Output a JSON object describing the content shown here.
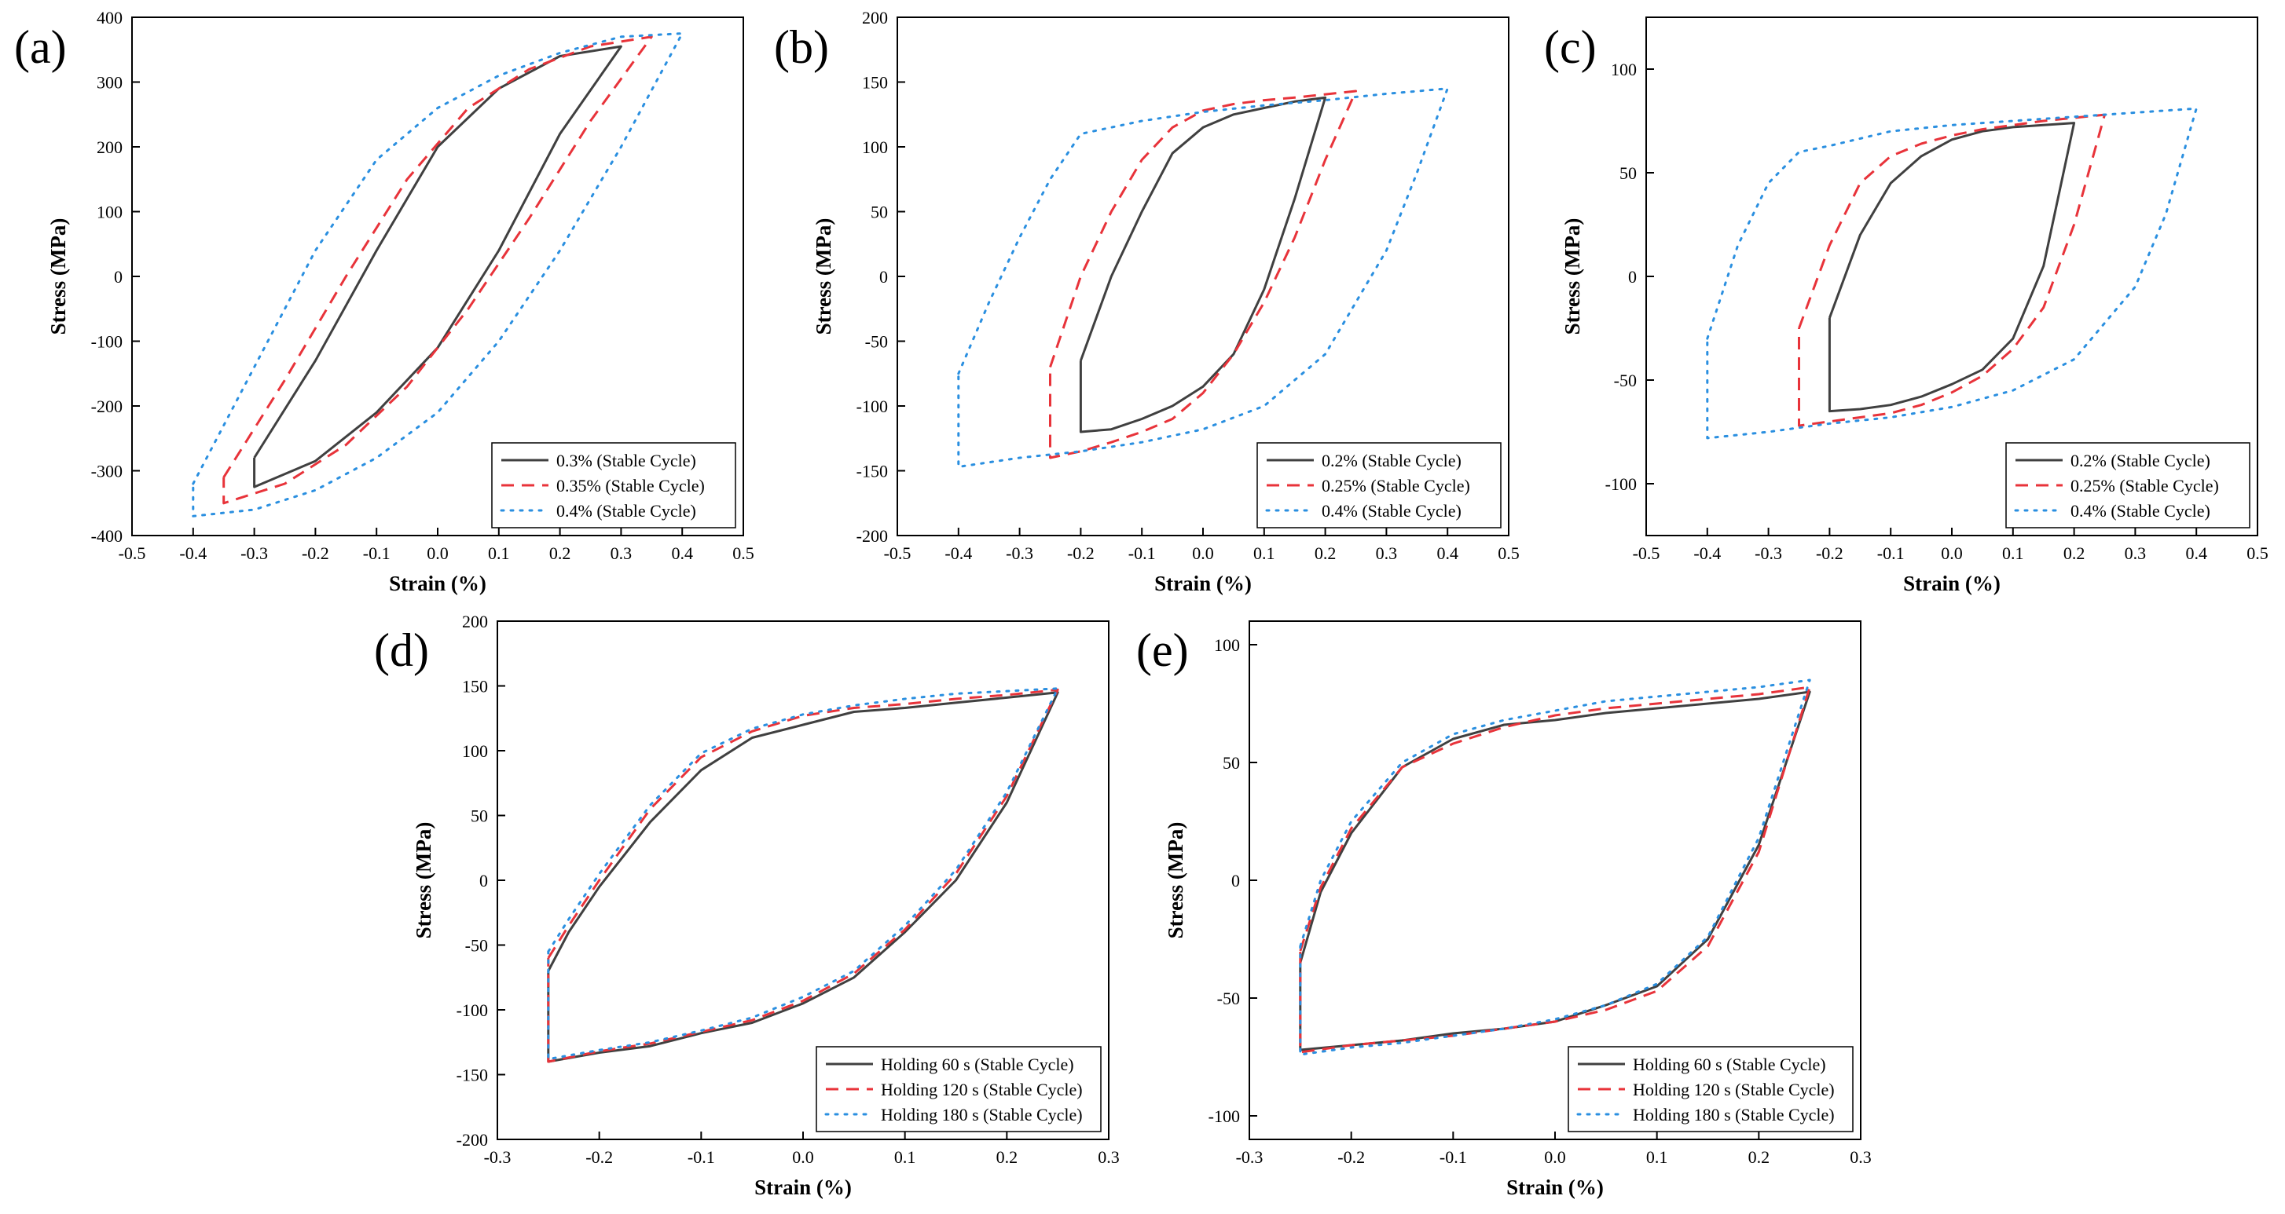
{
  "chart_data": [
    {
      "panel": "(a)",
      "type": "line",
      "xlabel": "Strain (%)",
      "ylabel": "Stress (MPa)",
      "xlim": [
        -0.5,
        0.5
      ],
      "ylim": [
        -400,
        400
      ],
      "xticks": [
        -0.5,
        -0.4,
        -0.3,
        -0.2,
        -0.1,
        0.0,
        0.1,
        0.2,
        0.3,
        0.4,
        0.5
      ],
      "yticks": [
        -400,
        -300,
        -200,
        -100,
        0,
        100,
        200,
        300,
        400
      ],
      "xtick_labels": [
        "-0.5",
        "-0.4",
        "-0.3",
        "-0.2",
        "-0.1",
        "0.0",
        "0.1",
        "0.2",
        "0.3",
        "0.4",
        "0.5"
      ],
      "ytick_labels": [
        "-400",
        "-300",
        "-200",
        "-100",
        "0",
        "100",
        "200",
        "300",
        "400"
      ],
      "legend_position": "bottom-right",
      "series": [
        {
          "name": "0.3% (Stable Cycle)",
          "color": "#404040",
          "style": "solid",
          "x": [
            -0.3,
            -0.2,
            -0.1,
            0.0,
            0.1,
            0.2,
            0.3,
            0.3,
            0.2,
            0.1,
            0.0,
            -0.1,
            -0.2,
            -0.3,
            -0.3
          ],
          "y": [
            -280,
            -130,
            40,
            200,
            290,
            340,
            355,
            355,
            220,
            40,
            -110,
            -210,
            -285,
            -325,
            -280
          ]
        },
        {
          "name": "0.35% (Stable Cycle)",
          "color": "#e8333a",
          "style": "dashed",
          "x": [
            -0.35,
            -0.25,
            -0.15,
            -0.05,
            0.05,
            0.15,
            0.25,
            0.35,
            0.35,
            0.25,
            0.15,
            0.05,
            -0.05,
            -0.15,
            -0.25,
            -0.35,
            -0.35
          ],
          "y": [
            -310,
            -160,
            0,
            150,
            260,
            320,
            355,
            370,
            370,
            240,
            90,
            -50,
            -170,
            -260,
            -320,
            -350,
            -310
          ]
        },
        {
          "name": "0.4% (Stable Cycle)",
          "color": "#2a8fe0",
          "style": "dotted",
          "x": [
            -0.4,
            -0.3,
            -0.2,
            -0.1,
            0.0,
            0.1,
            0.2,
            0.3,
            0.4,
            0.4,
            0.3,
            0.2,
            0.1,
            0.0,
            -0.1,
            -0.2,
            -0.3,
            -0.4,
            -0.4
          ],
          "y": [
            -320,
            -140,
            40,
            180,
            260,
            310,
            345,
            370,
            375,
            375,
            200,
            40,
            -100,
            -210,
            -280,
            -330,
            -360,
            -370,
            -320
          ]
        }
      ]
    },
    {
      "panel": "(b)",
      "type": "line",
      "xlabel": "Strain (%)",
      "ylabel": "Stress (MPa)",
      "xlim": [
        -0.5,
        0.5
      ],
      "ylim": [
        -200,
        200
      ],
      "xticks": [
        -0.5,
        -0.4,
        -0.3,
        -0.2,
        -0.1,
        0.0,
        0.1,
        0.2,
        0.3,
        0.4,
        0.5
      ],
      "yticks": [
        -200,
        -150,
        -100,
        -50,
        0,
        50,
        100,
        150,
        200
      ],
      "xtick_labels": [
        "-0.5",
        "-0.4",
        "-0.3",
        "-0.2",
        "-0.1",
        "0.0",
        "0.1",
        "0.2",
        "0.3",
        "0.4",
        "0.5"
      ],
      "ytick_labels": [
        "-200",
        "-150",
        "-100",
        "-50",
        "0",
        "50",
        "100",
        "150",
        "200"
      ],
      "legend_position": "bottom-right",
      "series": [
        {
          "name": "0.2% (Stable Cycle)",
          "color": "#404040",
          "style": "solid",
          "x": [
            -0.2,
            -0.15,
            -0.1,
            -0.05,
            0.0,
            0.05,
            0.1,
            0.15,
            0.2,
            0.2,
            0.15,
            0.1,
            0.05,
            0.0,
            -0.05,
            -0.1,
            -0.15,
            -0.2,
            -0.2
          ],
          "y": [
            -65,
            0,
            50,
            95,
            115,
            125,
            130,
            135,
            138,
            138,
            60,
            -10,
            -60,
            -85,
            -100,
            -110,
            -118,
            -120,
            -65
          ]
        },
        {
          "name": "0.25% (Stable Cycle)",
          "color": "#e8333a",
          "style": "dashed",
          "x": [
            -0.25,
            -0.2,
            -0.15,
            -0.1,
            -0.05,
            0.0,
            0.05,
            0.1,
            0.15,
            0.25,
            0.25,
            0.2,
            0.15,
            0.1,
            0.05,
            0.0,
            -0.05,
            -0.1,
            -0.15,
            -0.2,
            -0.25,
            -0.25
          ],
          "y": [
            -70,
            0,
            50,
            90,
            115,
            128,
            133,
            136,
            138,
            143,
            143,
            90,
            30,
            -20,
            -60,
            -90,
            -110,
            -120,
            -128,
            -135,
            -140,
            -70
          ]
        },
        {
          "name": "0.4% (Stable Cycle)",
          "color": "#2a8fe0",
          "style": "dotted",
          "x": [
            -0.4,
            -0.35,
            -0.3,
            -0.25,
            -0.2,
            -0.1,
            0.0,
            0.1,
            0.2,
            0.3,
            0.4,
            0.4,
            0.35,
            0.3,
            0.2,
            0.1,
            0.0,
            -0.1,
            -0.2,
            -0.3,
            -0.4,
            -0.4
          ],
          "y": [
            -75,
            -20,
            30,
            75,
            110,
            120,
            127,
            132,
            136,
            141,
            145,
            145,
            80,
            20,
            -60,
            -100,
            -118,
            -128,
            -135,
            -140,
            -147,
            -75
          ]
        }
      ]
    },
    {
      "panel": "(c)",
      "type": "line",
      "xlabel": "Strain (%)",
      "ylabel": "Stress (MPa)",
      "xlim": [
        -0.5,
        0.5
      ],
      "ylim": [
        -125,
        125
      ],
      "xticks": [
        -0.5,
        -0.4,
        -0.3,
        -0.2,
        -0.1,
        0.0,
        0.1,
        0.2,
        0.3,
        0.4,
        0.5
      ],
      "yticks": [
        -100,
        -50,
        0,
        50,
        100
      ],
      "xtick_labels": [
        "-0.5",
        "-0.4",
        "-0.3",
        "-0.2",
        "-0.1",
        "0.0",
        "0.1",
        "0.2",
        "0.3",
        "0.4",
        "0.5"
      ],
      "ytick_labels": [
        "-100",
        "-50",
        "0",
        "50",
        "100"
      ],
      "legend_position": "bottom-right",
      "series": [
        {
          "name": "0.2% (Stable Cycle)",
          "color": "#404040",
          "style": "solid",
          "x": [
            -0.2,
            -0.15,
            -0.1,
            -0.05,
            0.0,
            0.05,
            0.1,
            0.15,
            0.2,
            0.2,
            0.15,
            0.1,
            0.05,
            0.0,
            -0.05,
            -0.1,
            -0.15,
            -0.2,
            -0.2
          ],
          "y": [
            -20,
            20,
            45,
            58,
            66,
            70,
            72,
            73,
            74,
            74,
            5,
            -30,
            -45,
            -52,
            -58,
            -62,
            -64,
            -65,
            -20
          ]
        },
        {
          "name": "0.25% (Stable Cycle)",
          "color": "#e8333a",
          "style": "dashed",
          "x": [
            -0.25,
            -0.2,
            -0.15,
            -0.1,
            -0.05,
            0.0,
            0.05,
            0.1,
            0.15,
            0.25,
            0.25,
            0.2,
            0.15,
            0.1,
            0.05,
            0.0,
            -0.05,
            -0.1,
            -0.15,
            -0.2,
            -0.25,
            -0.25
          ],
          "y": [
            -25,
            15,
            45,
            58,
            64,
            68,
            71,
            73,
            75,
            78,
            78,
            25,
            -15,
            -35,
            -48,
            -56,
            -62,
            -66,
            -68,
            -70,
            -72,
            -25
          ]
        },
        {
          "name": "0.4% (Stable Cycle)",
          "color": "#2a8fe0",
          "style": "dotted",
          "x": [
            -0.4,
            -0.35,
            -0.3,
            -0.25,
            -0.2,
            -0.1,
            0.0,
            0.1,
            0.2,
            0.3,
            0.4,
            0.4,
            0.35,
            0.3,
            0.2,
            0.1,
            0.0,
            -0.1,
            -0.2,
            -0.3,
            -0.4,
            -0.4
          ],
          "y": [
            -30,
            15,
            45,
            60,
            63,
            70,
            73,
            75,
            77,
            79,
            81,
            81,
            30,
            -5,
            -40,
            -55,
            -63,
            -68,
            -71,
            -75,
            -78,
            -30
          ]
        }
      ]
    },
    {
      "panel": "(d)",
      "type": "line",
      "xlabel": "Strain (%)",
      "ylabel": "Stress (MPa)",
      "xlim": [
        -0.3,
        0.3
      ],
      "ylim": [
        -200,
        200
      ],
      "xticks": [
        -0.3,
        -0.2,
        -0.1,
        0.0,
        0.1,
        0.2,
        0.3
      ],
      "yticks": [
        -200,
        -150,
        -100,
        -50,
        0,
        50,
        100,
        150,
        200
      ],
      "xtick_labels": [
        "-0.3",
        "-0.2",
        "-0.1",
        "0.0",
        "0.1",
        "0.2",
        "0.3"
      ],
      "ytick_labels": [
        "-200",
        "-150",
        "-100",
        "-50",
        "0",
        "50",
        "100",
        "150",
        "200"
      ],
      "legend_position": "bottom-right",
      "series": [
        {
          "name": "Holding 60 s (Stable Cycle)",
          "color": "#404040",
          "style": "solid",
          "x": [
            -0.25,
            -0.23,
            -0.2,
            -0.15,
            -0.1,
            -0.05,
            0.0,
            0.05,
            0.1,
            0.15,
            0.2,
            0.25,
            0.25,
            0.2,
            0.15,
            0.1,
            0.05,
            0.0,
            -0.05,
            -0.1,
            -0.15,
            -0.2,
            -0.25,
            -0.25
          ],
          "y": [
            -70,
            -40,
            -5,
            45,
            85,
            110,
            120,
            130,
            133,
            137,
            141,
            145,
            145,
            60,
            0,
            -40,
            -75,
            -95,
            -110,
            -118,
            -128,
            -133,
            -140,
            -70
          ]
        },
        {
          "name": "Holding 120 s (Stable Cycle)",
          "color": "#e8333a",
          "style": "dashed",
          "x": [
            -0.25,
            -0.23,
            -0.2,
            -0.15,
            -0.1,
            -0.05,
            0.0,
            0.05,
            0.1,
            0.15,
            0.2,
            0.25,
            0.25,
            0.2,
            0.15,
            0.1,
            0.05,
            0.0,
            -0.05,
            -0.1,
            -0.15,
            -0.2,
            -0.25,
            -0.25
          ],
          "y": [
            -60,
            -35,
            0,
            55,
            95,
            115,
            127,
            133,
            136,
            140,
            143,
            147,
            147,
            65,
            5,
            -38,
            -72,
            -93,
            -108,
            -117,
            -126,
            -132,
            -140,
            -60
          ]
        },
        {
          "name": "Holding 180 s (Stable Cycle)",
          "color": "#2a8fe0",
          "style": "dotted",
          "x": [
            -0.25,
            -0.23,
            -0.2,
            -0.15,
            -0.1,
            -0.05,
            0.0,
            0.05,
            0.1,
            0.15,
            0.2,
            0.25,
            0.25,
            0.2,
            0.15,
            0.1,
            0.05,
            0.0,
            -0.05,
            -0.1,
            -0.15,
            -0.2,
            -0.25,
            -0.25
          ],
          "y": [
            -55,
            -30,
            5,
            58,
            98,
            117,
            128,
            135,
            140,
            144,
            146,
            148,
            148,
            68,
            8,
            -35,
            -70,
            -90,
            -106,
            -116,
            -125,
            -131,
            -138,
            -55
          ]
        }
      ]
    },
    {
      "panel": "(e)",
      "type": "line",
      "xlabel": "Strain (%)",
      "ylabel": "Stress (MPa)",
      "xlim": [
        -0.3,
        0.3
      ],
      "ylim": [
        -110,
        110
      ],
      "xticks": [
        -0.3,
        -0.2,
        -0.1,
        0.0,
        0.1,
        0.2,
        0.3
      ],
      "yticks": [
        -100,
        -50,
        0,
        50,
        100
      ],
      "xtick_labels": [
        "-0.3",
        "-0.2",
        "-0.1",
        "0.0",
        "0.1",
        "0.2",
        "0.3"
      ],
      "ytick_labels": [
        "-100",
        "-50",
        "0",
        "50",
        "100"
      ],
      "legend_position": "bottom-right",
      "series": [
        {
          "name": "Holding 60 s (Stable Cycle)",
          "color": "#404040",
          "style": "solid",
          "x": [
            -0.25,
            -0.23,
            -0.2,
            -0.15,
            -0.1,
            -0.05,
            0.0,
            0.05,
            0.1,
            0.15,
            0.2,
            0.25,
            0.25,
            0.2,
            0.15,
            0.1,
            0.05,
            0.0,
            -0.05,
            -0.1,
            -0.15,
            -0.2,
            -0.25,
            -0.25
          ],
          "y": [
            -35,
            -5,
            20,
            48,
            60,
            66,
            68,
            71,
            73,
            75,
            77,
            80,
            80,
            15,
            -25,
            -45,
            -53,
            -60,
            -63,
            -65,
            -68,
            -70,
            -72,
            -35
          ]
        },
        {
          "name": "Holding 120 s (Stable Cycle)",
          "color": "#e8333a",
          "style": "dashed",
          "x": [
            -0.25,
            -0.23,
            -0.2,
            -0.15,
            -0.1,
            -0.05,
            0.0,
            0.05,
            0.1,
            0.15,
            0.2,
            0.25,
            0.25,
            0.2,
            0.15,
            0.1,
            0.05,
            0.0,
            -0.05,
            -0.1,
            -0.15,
            -0.2,
            -0.25,
            -0.25
          ],
          "y": [
            -30,
            -3,
            22,
            48,
            58,
            65,
            70,
            73,
            75,
            77,
            79,
            82,
            82,
            12,
            -28,
            -47,
            -55,
            -60,
            -63,
            -66,
            -68,
            -70,
            -73,
            -30
          ]
        },
        {
          "name": "Holding 180 s (Stable Cycle)",
          "color": "#2a8fe0",
          "style": "dotted",
          "x": [
            -0.25,
            -0.23,
            -0.2,
            -0.15,
            -0.1,
            -0.05,
            0.0,
            0.05,
            0.1,
            0.15,
            0.2,
            0.25,
            0.25,
            0.2,
            0.15,
            0.1,
            0.05,
            0.0,
            -0.05,
            -0.1,
            -0.15,
            -0.2,
            -0.25,
            -0.25
          ],
          "y": [
            -28,
            0,
            25,
            50,
            62,
            68,
            72,
            76,
            78,
            80,
            82,
            85,
            85,
            18,
            -24,
            -44,
            -53,
            -59,
            -63,
            -66,
            -69,
            -71,
            -74,
            -28
          ]
        }
      ]
    }
  ]
}
